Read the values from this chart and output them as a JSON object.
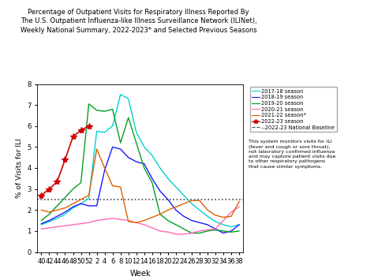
{
  "title": "Percentage of Outpatient Visits for Respiratory Illness Reported By\nThe U.S. Outpatient Influenza-like Illness Surveillance Network (ILINet),\nWeekly National Summary, 2022-2023* and Selected Previous Seasons",
  "xlabel": "Week",
  "ylabel": "% of Visits for ILI",
  "ylim": [
    0,
    8
  ],
  "yticks": [
    0,
    1,
    2,
    3,
    4,
    5,
    6,
    7,
    8
  ],
  "xtick_labels": [
    "40",
    "42",
    "44",
    "46",
    "48",
    "50",
    "52",
    "2",
    "4",
    "6",
    "8",
    "10",
    "12",
    "14",
    "16",
    "18",
    "20",
    "22",
    "24",
    "26",
    "28",
    "30",
    "32",
    "34",
    "36",
    "38"
  ],
  "baseline": 2.5,
  "annotation": "This system monitors visits for ILI\n(fever and cough or sore throat),\nnot laboratory confirmed influenza\nand may capture patient visits due\nto other respiratory pathogens\nthat cause similar symptoms.",
  "seasons": {
    "2017-18": {
      "color": "#00d0d0",
      "linestyle": "-",
      "linewidth": 1.0,
      "marker": null,
      "values": [
        1.3,
        1.45,
        1.6,
        1.8,
        2.1,
        2.3,
        2.55,
        5.75,
        5.7,
        6.0,
        7.5,
        7.3,
        5.7,
        5.0,
        4.6,
        4.0,
        3.5,
        3.1,
        2.7,
        2.3,
        2.0,
        1.7,
        1.45,
        1.3,
        1.2,
        1.3
      ]
    },
    "2018-19": {
      "color": "#1a1aff",
      "linestyle": "-",
      "linewidth": 1.0,
      "marker": null,
      "values": [
        1.35,
        1.5,
        1.7,
        1.9,
        2.15,
        2.3,
        2.2,
        2.2,
        3.9,
        5.0,
        4.9,
        4.5,
        4.3,
        4.2,
        3.5,
        2.9,
        2.5,
        2.0,
        1.7,
        1.5,
        1.4,
        1.3,
        1.1,
        0.9,
        1.0,
        1.3
      ]
    },
    "2019-20": {
      "color": "#00a020",
      "linestyle": "-",
      "linewidth": 1.0,
      "marker": null,
      "values": [
        1.5,
        1.8,
        2.2,
        2.6,
        3.0,
        3.3,
        7.05,
        6.75,
        6.7,
        6.8,
        5.2,
        6.4,
        5.2,
        4.0,
        3.3,
        1.8,
        1.5,
        1.3,
        1.1,
        0.9,
        0.9,
        1.0,
        1.05,
        1.0,
        0.95,
        1.0
      ]
    },
    "2020-21": {
      "color": "#ff69b4",
      "linestyle": "-",
      "linewidth": 1.0,
      "marker": null,
      "values": [
        1.1,
        1.15,
        1.2,
        1.25,
        1.3,
        1.35,
        1.4,
        1.5,
        1.55,
        1.6,
        1.55,
        1.5,
        1.4,
        1.3,
        1.15,
        1.0,
        0.95,
        0.85,
        0.85,
        0.9,
        1.0,
        1.05,
        1.1,
        1.5,
        1.9,
        2.15
      ]
    },
    "2021-22": {
      "color": "#e06000",
      "linestyle": "-",
      "linewidth": 1.0,
      "marker": null,
      "values": [
        2.0,
        1.9,
        2.0,
        2.1,
        2.3,
        2.5,
        2.7,
        4.9,
        4.0,
        3.15,
        3.1,
        1.45,
        1.4,
        1.5,
        1.65,
        1.8,
        2.0,
        2.15,
        2.3,
        2.45,
        2.45,
        2.0,
        1.75,
        1.65,
        1.7,
        2.4
      ]
    },
    "2022-23": {
      "color": "#cc0000",
      "linestyle": "-",
      "linewidth": 1.2,
      "marker": "*",
      "marker_size": 6,
      "values": [
        2.7,
        3.0,
        3.35,
        4.4,
        5.5,
        5.8,
        6.0,
        null,
        null,
        null,
        null,
        null,
        null,
        null,
        null,
        null,
        null,
        null,
        null,
        null,
        null,
        null,
        null,
        null,
        null,
        null
      ]
    }
  },
  "seasons_order": [
    "2017-18",
    "2018-19",
    "2019-20",
    "2020-21",
    "2021-22",
    "2022-23"
  ],
  "legend_labels": [
    "2017-18 season",
    "2018-19 season",
    "2019-20 season",
    "2020-21 season",
    "2021-22 season*",
    "2022-23 season",
    "--2022-23 National Baseline"
  ],
  "legend_colors": [
    "#00d0d0",
    "#1a1aff",
    "#00a020",
    "#ff69b4",
    "#e06000",
    "#cc0000",
    "#555555"
  ]
}
